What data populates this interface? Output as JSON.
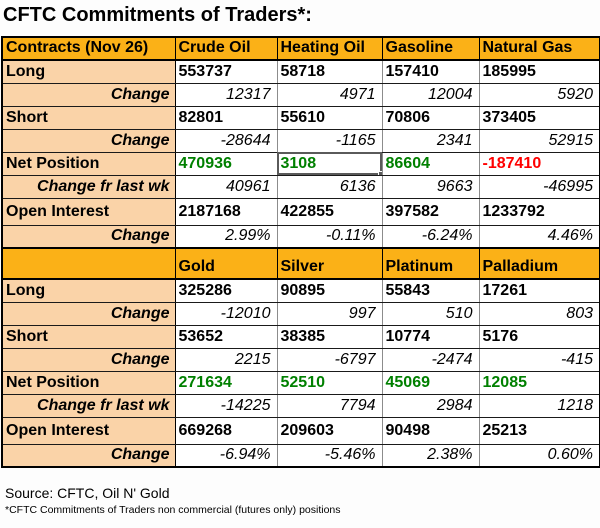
{
  "page": {
    "title": "CFTC Commitments of Traders*:",
    "source_line": "Source: CFTC, Oil N' Gold",
    "footnote": "*CFTC Commitments of Traders non commercial (futures only) positions"
  },
  "colors": {
    "header_bg": "#fbb117",
    "label_bg": "#fad3a8",
    "positive_value": "#008000",
    "negative_value": "#ff0000",
    "grid_gray": "#8c8c8c",
    "frame_black": "#000000"
  },
  "table": {
    "sections": [
      {
        "header": [
          "Contracts (Nov 26)",
          "Crude Oil",
          "Heating Oil",
          "Gasoline",
          "Natural Gas"
        ],
        "rows": [
          {
            "label": "Long",
            "style": "bold",
            "values": [
              "553737",
              "58718",
              "157410",
              "185995"
            ]
          },
          {
            "label": "Change",
            "style": "change",
            "values": [
              "12317",
              "4971",
              "12004",
              "5920"
            ]
          },
          {
            "label": "Short",
            "style": "bold",
            "values": [
              "82801",
              "55610",
              "70806",
              "373405"
            ]
          },
          {
            "label": "Change",
            "style": "change",
            "values": [
              "-28644",
              "-1165",
              "2341",
              "52915"
            ]
          },
          {
            "label": "Net Position",
            "style": "bold",
            "values": [
              "470936",
              "3108",
              "86604",
              "-187410"
            ],
            "value_colors": [
              "green",
              "green",
              "green",
              "red"
            ],
            "selected_cell": 1
          },
          {
            "label": "Change fr last wk",
            "style": "change",
            "values": [
              "40961",
              "6136",
              "9663",
              "-46995"
            ]
          },
          {
            "label": "Open Interest",
            "style": "bold",
            "tall": true,
            "values": [
              "2187168",
              "422855",
              "397582",
              "1233792"
            ]
          },
          {
            "label": "Change",
            "style": "change",
            "values": [
              "2.99%",
              "-0.11%",
              "-6.24%",
              "4.46%"
            ]
          }
        ]
      },
      {
        "header": [
          "",
          "Gold",
          "Silver",
          "Platinum",
          "Palladium"
        ],
        "rows": [
          {
            "label": "Long",
            "style": "bold",
            "values": [
              "325286",
              "90895",
              "55843",
              "17261"
            ]
          },
          {
            "label": "Change",
            "style": "change",
            "values": [
              "-12010",
              "997",
              "510",
              "803"
            ]
          },
          {
            "label": "Short",
            "style": "bold",
            "values": [
              "53652",
              "38385",
              "10774",
              "5176"
            ]
          },
          {
            "label": "Change",
            "style": "change",
            "values": [
              "2215",
              "-6797",
              "-2474",
              "-415"
            ]
          },
          {
            "label": "Net Position",
            "style": "bold",
            "values": [
              "271634",
              "52510",
              "45069",
              "12085"
            ],
            "value_colors": [
              "green",
              "green",
              "green",
              "green"
            ]
          },
          {
            "label": "Change fr last wk",
            "style": "change",
            "values": [
              "-14225",
              "7794",
              "2984",
              "1218"
            ]
          },
          {
            "label": "Open Interest",
            "style": "bold",
            "tall": true,
            "values": [
              "669268",
              "209603",
              "90498",
              "25213"
            ]
          },
          {
            "label": "Change",
            "style": "change",
            "values": [
              "-6.94%",
              "-5.46%",
              "2.38%",
              "0.60%"
            ]
          }
        ]
      }
    ]
  }
}
